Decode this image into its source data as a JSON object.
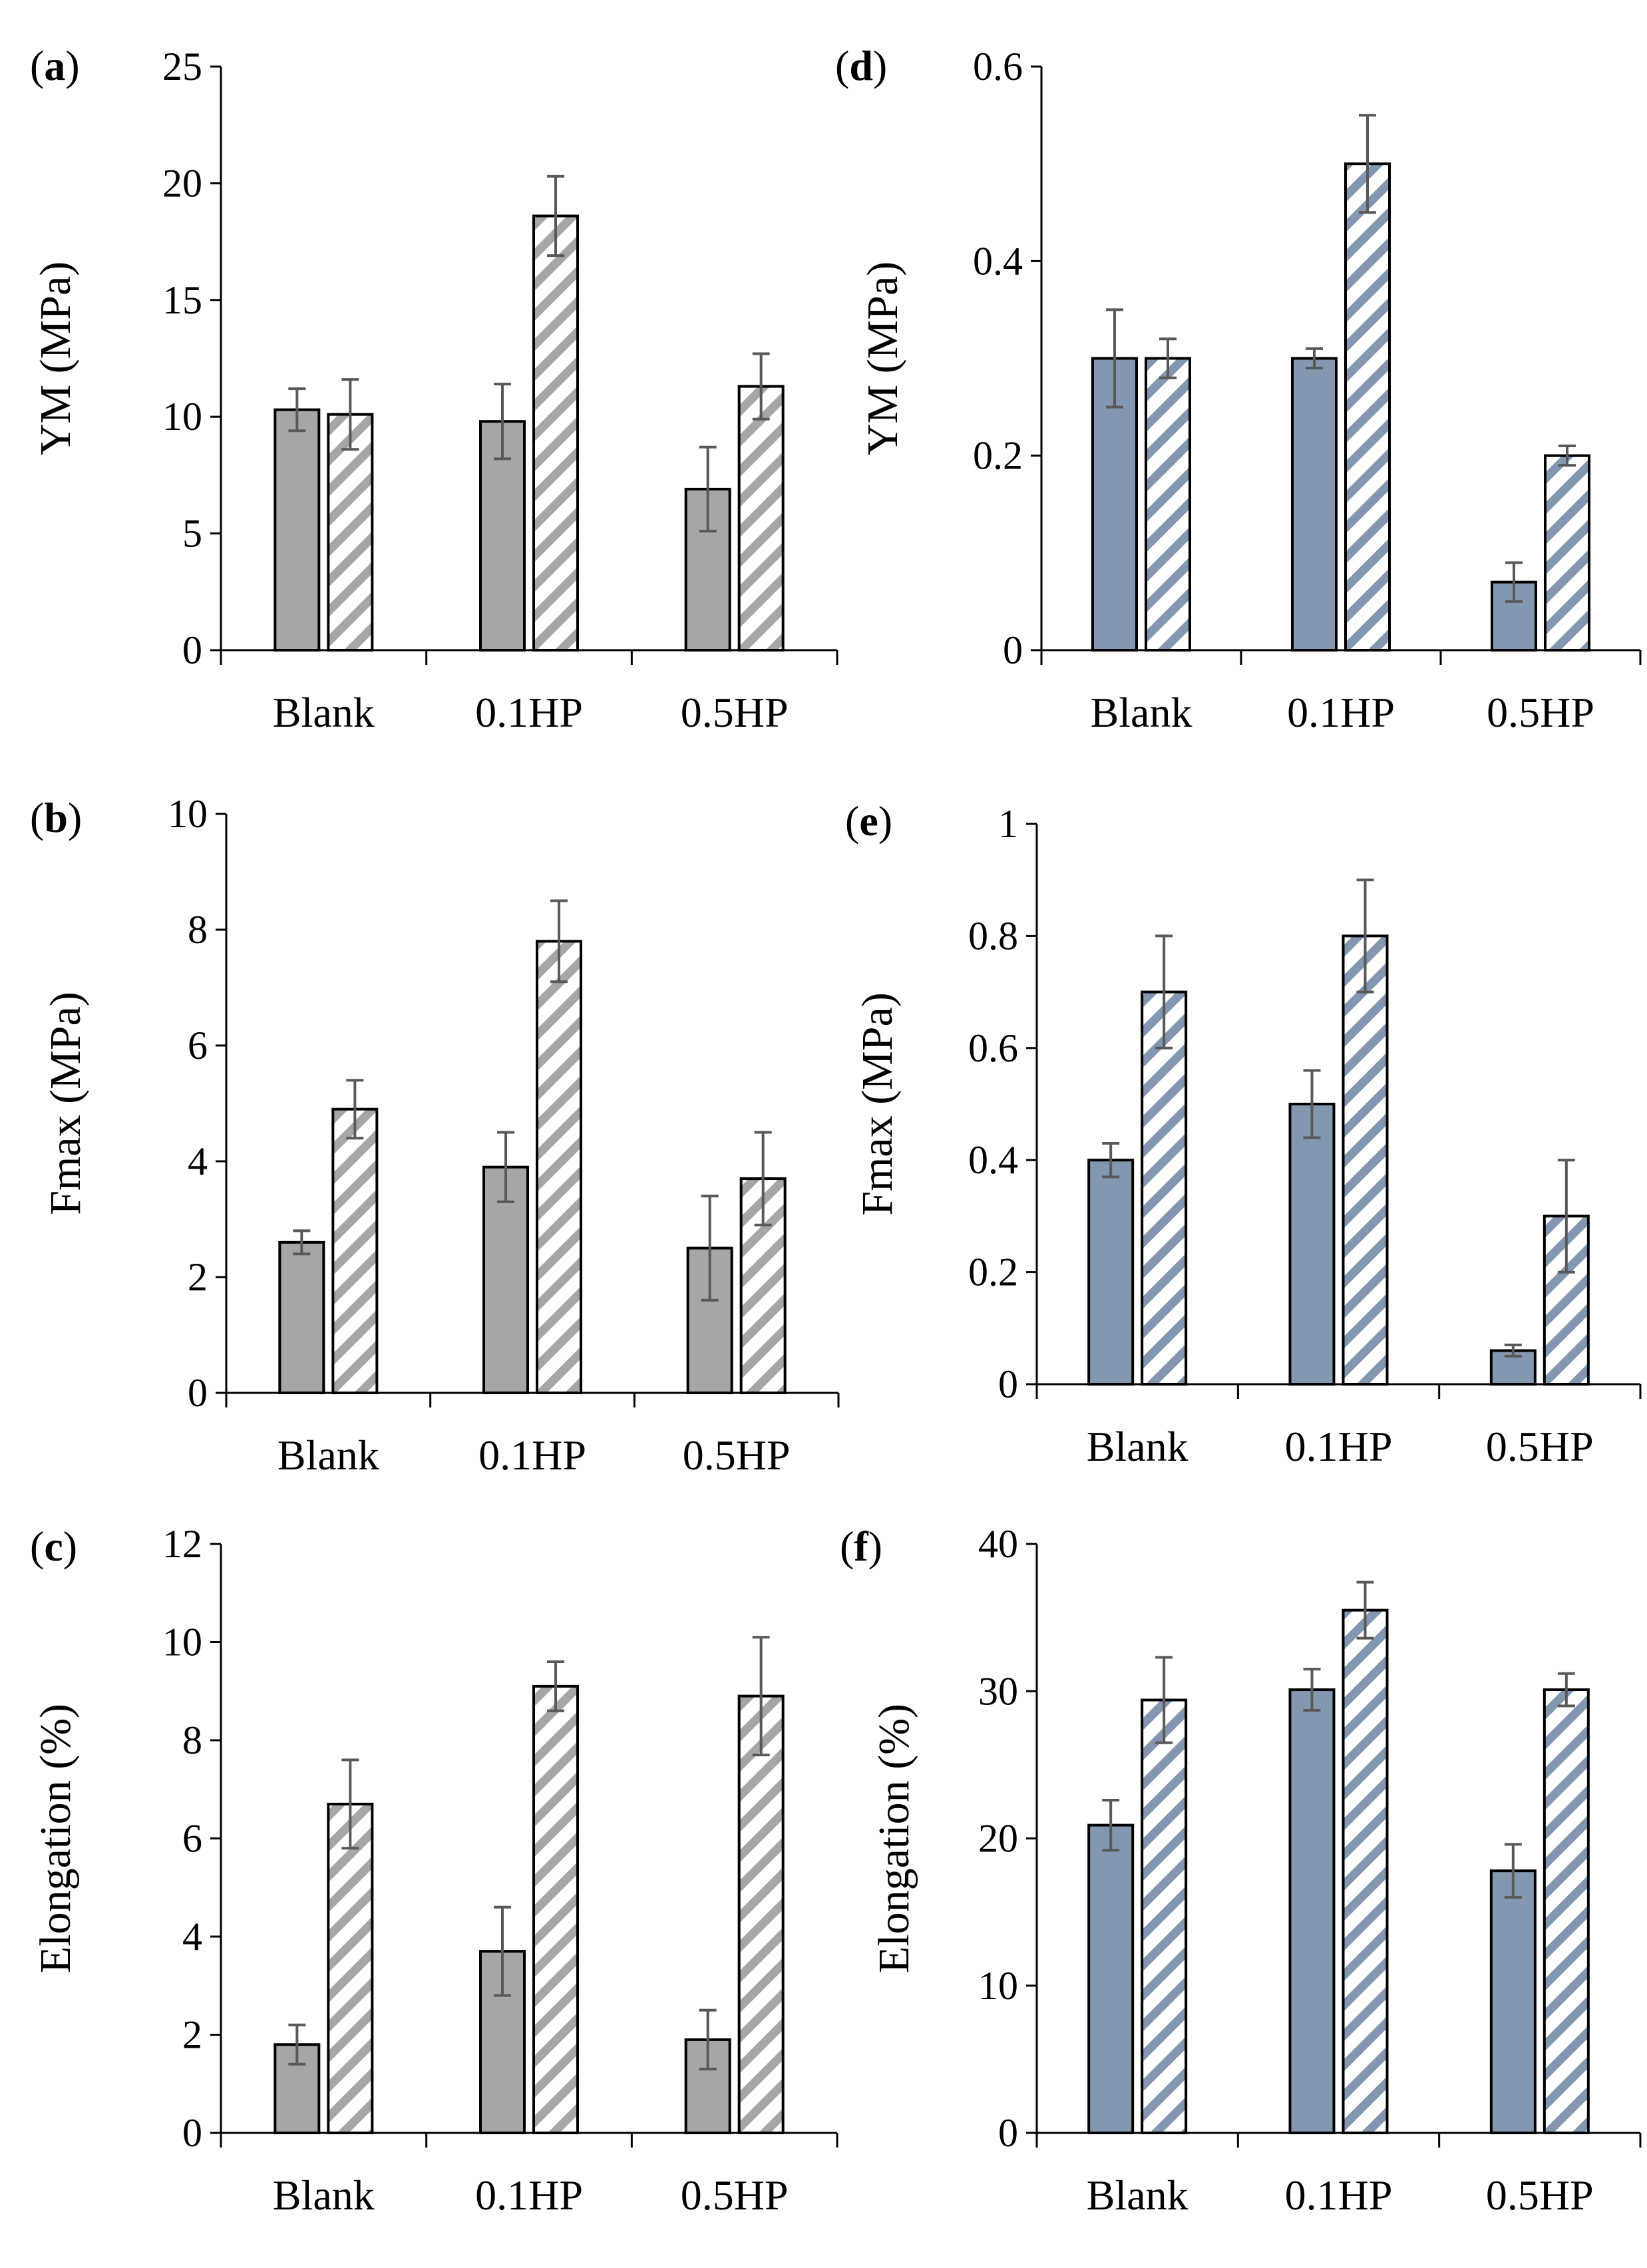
{
  "figure": {
    "solid_fill_gray": "#a6a6a6",
    "solid_fill_blue": "#8497b0",
    "hatch_color_gray": "#a6a6a6",
    "hatch_color_blue": "#8497b0",
    "error_bar_color": "#595959"
  },
  "chart_data": [
    {
      "panel": "a",
      "type": "bar",
      "color": "gray",
      "title": "",
      "xlabel": "",
      "ylabel": "YM (MPa)",
      "categories": [
        "Blank",
        "0.1HP",
        "0.5HP"
      ],
      "ylim": [
        0,
        25
      ],
      "yticks": [
        0,
        5,
        10,
        15,
        20,
        25
      ],
      "series": [
        {
          "name": "solid",
          "values": [
            10.3,
            9.8,
            6.9
          ],
          "errors": [
            0.9,
            1.6,
            1.8
          ]
        },
        {
          "name": "hatched",
          "values": [
            10.1,
            18.6,
            11.3
          ],
          "errors": [
            1.5,
            1.7,
            1.4
          ]
        }
      ]
    },
    {
      "panel": "b",
      "type": "bar",
      "color": "gray",
      "title": "",
      "xlabel": "",
      "ylabel": "Fmax (MPa)",
      "categories": [
        "Blank",
        "0.1HP",
        "0.5HP"
      ],
      "ylim": [
        0,
        10
      ],
      "yticks": [
        0,
        2,
        4,
        6,
        8,
        10
      ],
      "series": [
        {
          "name": "solid",
          "values": [
            2.6,
            3.9,
            2.5
          ],
          "errors": [
            0.2,
            0.6,
            0.9
          ]
        },
        {
          "name": "hatched",
          "values": [
            4.9,
            7.8,
            3.7
          ],
          "errors": [
            0.5,
            0.7,
            0.8
          ]
        }
      ]
    },
    {
      "panel": "c",
      "type": "bar",
      "color": "gray",
      "title": "",
      "xlabel": "",
      "ylabel": "Elongation (%)",
      "categories": [
        "Blank",
        "0.1HP",
        "0.5HP"
      ],
      "ylim": [
        0,
        12
      ],
      "yticks": [
        0,
        2,
        4,
        6,
        8,
        10,
        12
      ],
      "series": [
        {
          "name": "solid",
          "values": [
            1.8,
            3.7,
            1.9
          ],
          "errors": [
            0.4,
            0.9,
            0.6
          ]
        },
        {
          "name": "hatched",
          "values": [
            6.7,
            9.1,
            8.9
          ],
          "errors": [
            0.9,
            0.5,
            1.2
          ]
        }
      ]
    },
    {
      "panel": "d",
      "type": "bar",
      "color": "blue",
      "title": "",
      "xlabel": "",
      "ylabel": "YM (MPa)",
      "categories": [
        "Blank",
        "0.1HP",
        "0.5HP"
      ],
      "ylim": [
        0,
        0.6
      ],
      "yticks": [
        0,
        0.2,
        0.4,
        0.6
      ],
      "series": [
        {
          "name": "solid",
          "values": [
            0.3,
            0.3,
            0.07
          ],
          "errors": [
            0.05,
            0.01,
            0.02
          ]
        },
        {
          "name": "hatched",
          "values": [
            0.3,
            0.5,
            0.2
          ],
          "errors": [
            0.02,
            0.05,
            0.01
          ]
        }
      ]
    },
    {
      "panel": "e",
      "type": "bar",
      "color": "blue",
      "title": "",
      "xlabel": "",
      "ylabel": "Fmax (MPa)",
      "categories": [
        "Blank",
        "0.1HP",
        "0.5HP"
      ],
      "ylim": [
        0,
        1
      ],
      "yticks": [
        0,
        0.2,
        0.4,
        0.6,
        0.8,
        1
      ],
      "series": [
        {
          "name": "solid",
          "values": [
            0.4,
            0.5,
            0.06
          ],
          "errors": [
            0.03,
            0.06,
            0.01
          ]
        },
        {
          "name": "hatched",
          "values": [
            0.7,
            0.8,
            0.3
          ],
          "errors": [
            0.1,
            0.1,
            0.1
          ]
        }
      ]
    },
    {
      "panel": "f",
      "type": "bar",
      "color": "blue",
      "title": "",
      "xlabel": "",
      "ylabel": "Elongation (%)",
      "categories": [
        "Blank",
        "0.1HP",
        "0.5HP"
      ],
      "ylim": [
        0,
        40
      ],
      "yticks": [
        0,
        10,
        20,
        30,
        40
      ],
      "series": [
        {
          "name": "solid",
          "values": [
            20.9,
            30.1,
            17.8
          ],
          "errors": [
            1.7,
            1.4,
            1.8
          ]
        },
        {
          "name": "hatched",
          "values": [
            29.4,
            35.5,
            30.1
          ],
          "errors": [
            2.9,
            1.9,
            1.1
          ]
        }
      ]
    }
  ]
}
